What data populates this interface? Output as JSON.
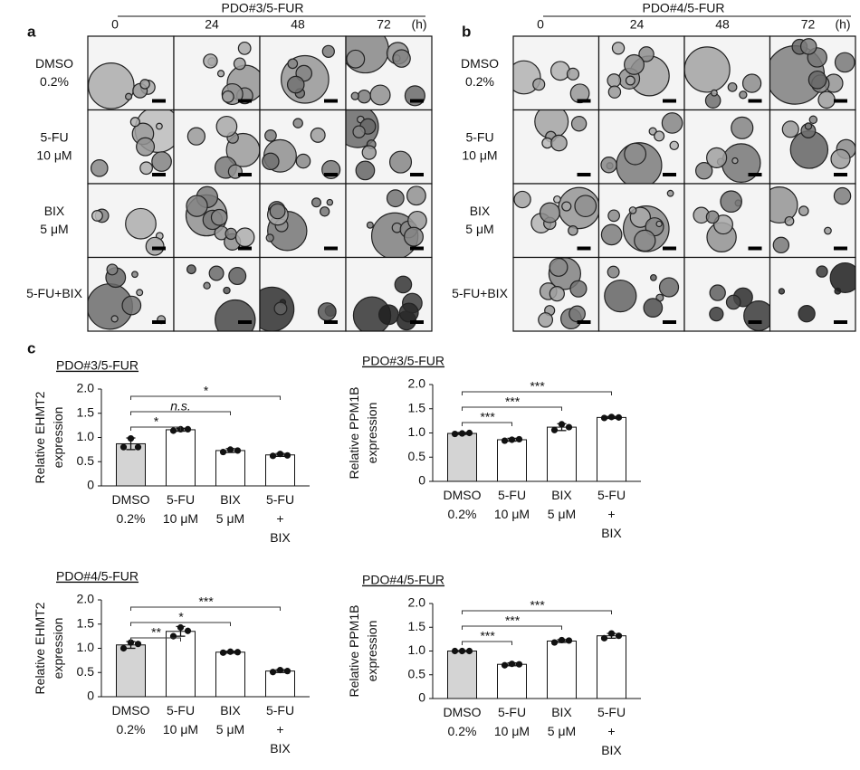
{
  "panels": [
    {
      "label": "a",
      "title": "PDO#3/5-FUR",
      "times": [
        "0",
        "24",
        "48",
        "72"
      ],
      "unit": "(h)",
      "rows": [
        "DMSO\n0.2%",
        "5-FU\n10 μM",
        "BIX\n5 μM",
        "5-FU+BIX"
      ]
    },
    {
      "label": "b",
      "title": "PDO#4/5-FUR",
      "times": [
        "0",
        "24",
        "48",
        "72"
      ],
      "unit": "(h)",
      "rows": [
        "DMSO\n0.2%",
        "5-FU\n10 μM",
        "BIX\n5 μM",
        "5-FU+BIX"
      ]
    }
  ],
  "panel_c_label": "c",
  "chart_data": [
    {
      "type": "bar",
      "title": "PDO#3/5-FUR",
      "y_label": "Relative EHMT2\nexpression",
      "categories": [
        "DMSO\n0.2%",
        "5-FU\n10 μM",
        "BIX\n5 μM",
        "5-FU\n+\nBIX"
      ],
      "values": [
        0.87,
        1.16,
        0.73,
        0.64
      ],
      "errors": [
        0.12,
        0.03,
        0.04,
        0.03
      ],
      "points": [
        [
          0.8,
          0.98,
          0.8
        ],
        [
          1.14,
          1.17,
          1.17
        ],
        [
          0.7,
          0.75,
          0.73
        ],
        [
          0.62,
          0.66,
          0.63
        ]
      ],
      "bar_colors": [
        "#d4d4d4",
        "#ffffff",
        "#ffffff",
        "#ffffff"
      ],
      "annotations": [
        "*",
        "n.s.",
        "*"
      ],
      "ylim": [
        0,
        2
      ],
      "yticks": [
        0,
        0.5,
        {
          "value": 1,
          "label": "1.0"
        },
        1.5,
        {
          "value": 2,
          "label": "2.0"
        }
      ]
    },
    {
      "type": "bar",
      "title": "PDO#3/5-FUR",
      "y_label": "Relative PPM1B\nexpression",
      "categories": [
        "DMSO\n0.2%",
        "5-FU\n10 μM",
        "BIX\n5 μM",
        "5-FU\n+\nBIX"
      ],
      "values": [
        0.99,
        0.86,
        1.12,
        1.32
      ],
      "errors": [
        0.02,
        0.03,
        0.07,
        0.02
      ],
      "points": [
        [
          0.98,
          0.99,
          1.0
        ],
        [
          0.84,
          0.86,
          0.87
        ],
        [
          1.06,
          1.18,
          1.12
        ],
        [
          1.31,
          1.33,
          1.32
        ]
      ],
      "bar_colors": [
        "#d4d4d4",
        "#ffffff",
        "#ffffff",
        "#ffffff"
      ],
      "annotations": [
        "***",
        "***",
        "***"
      ],
      "ylim": [
        0,
        2
      ],
      "yticks": [
        0,
        0.5,
        {
          "value": 1,
          "label": "1.0"
        },
        1.5,
        {
          "value": 2,
          "label": "2.0"
        }
      ]
    },
    {
      "type": "bar",
      "title": "PDO#4/5-FUR",
      "y_label": "Relative EHMT2\nexpression",
      "categories": [
        "DMSO\n0.2%",
        "5-FU\n10 μM",
        "BIX\n5 μM",
        "5-FU\n+\nBIX"
      ],
      "values": [
        1.07,
        1.35,
        0.92,
        0.53
      ],
      "errors": [
        0.07,
        0.1,
        0.02,
        0.03
      ],
      "points": [
        [
          1.0,
          1.12,
          1.09
        ],
        [
          1.25,
          1.43,
          1.36
        ],
        [
          0.91,
          0.93,
          0.92
        ],
        [
          0.51,
          0.55,
          0.53
        ]
      ],
      "bar_colors": [
        "#d4d4d4",
        "#ffffff",
        "#ffffff",
        "#ffffff"
      ],
      "annotations": [
        "**",
        "*",
        "***"
      ],
      "ylim": [
        0,
        2
      ],
      "yticks": [
        0,
        0.5,
        {
          "value": 1,
          "label": "1.0"
        },
        1.5,
        {
          "value": 2,
          "label": "2.0"
        }
      ]
    },
    {
      "type": "bar",
      "title": "PDO#4/5-FUR",
      "y_label": "Relative PPM1B\nexpression",
      "categories": [
        "DMSO\n0.2%",
        "5-FU\n10 μM",
        "BIX\n5 μM",
        "5-FU\n+\nBIX"
      ],
      "values": [
        1.0,
        0.72,
        1.21,
        1.32
      ],
      "errors": [
        0.01,
        0.03,
        0.03,
        0.05
      ],
      "points": [
        [
          1.0,
          1.0,
          1.0
        ],
        [
          0.7,
          0.73,
          0.72
        ],
        [
          1.18,
          1.23,
          1.22
        ],
        [
          1.27,
          1.37,
          1.32
        ]
      ],
      "bar_colors": [
        "#d4d4d4",
        "#ffffff",
        "#ffffff",
        "#ffffff"
      ],
      "annotations": [
        "***",
        "***",
        "***"
      ],
      "ylim": [
        0,
        2
      ],
      "yticks": [
        0,
        0.5,
        {
          "value": 1,
          "label": "1.0"
        },
        1.5,
        {
          "value": 2,
          "label": "2.0"
        }
      ]
    }
  ]
}
